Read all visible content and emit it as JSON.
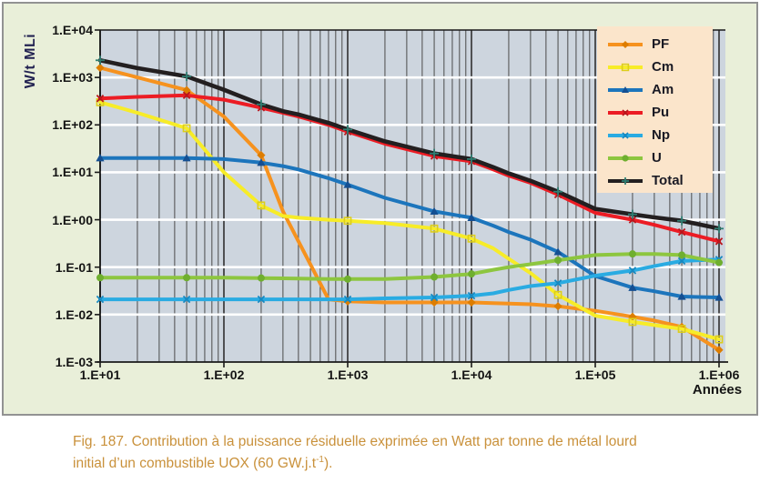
{
  "figure": {
    "y_axis_title": "W/t MLi",
    "x_axis_title": "Années",
    "caption": {
      "line1": "Fig. 187. Contribution à la puissance résiduelle exprimée en Watt par tonne de métal lourd",
      "line2_pre": "initial d’un combustible UOX (60 GW.j.t",
      "line2_sup": "-1",
      "line2_post": ")."
    },
    "colors": {
      "figure_background": "#e9efd9",
      "plot_background": "#cdd5de",
      "legend_background": "#fbe5cb",
      "caption_text": "#c9913b",
      "axis_text": "#141414",
      "grid_vertical": "#4a4a4a",
      "grid_horizontal": "#ffffff"
    }
  },
  "chart_data": {
    "type": "line",
    "title": "",
    "xlabel": "Années",
    "ylabel": "W/t MLi",
    "x_scale": "log",
    "y_scale": "log",
    "xlim": [
      10,
      1000000
    ],
    "ylim": [
      0.001,
      10000
    ],
    "x_tick_labels": [
      "1.E+01",
      "1.E+02",
      "1.E+03",
      "1.E+04",
      "1.E+05",
      "1.E+06"
    ],
    "x_tick_values": [
      10,
      100,
      1000,
      10000,
      100000,
      1000000
    ],
    "y_tick_labels": [
      "1.E+04",
      "1.E+03",
      "1.E+02",
      "1.E+01",
      "1.E+00",
      "1.E-01",
      "1.E-02",
      "1.E-03"
    ],
    "y_tick_values": [
      10000,
      1000,
      100,
      10,
      1,
      0.1,
      0.01,
      0.001
    ],
    "legend_position": "top-right",
    "grid": {
      "vertical_minor_log_lines": true,
      "horizontal_decade_lines": "white"
    },
    "x": [
      10,
      20,
      50,
      100,
      200,
      300,
      400,
      700,
      1000,
      2000,
      5000,
      10000,
      15000,
      20000,
      30000,
      50000,
      100000,
      200000,
      300000,
      500000,
      1000000
    ],
    "marker_x": [
      10,
      50,
      200,
      1000,
      5000,
      10000,
      50000,
      200000,
      500000,
      1000000
    ],
    "series": [
      {
        "name": "PF",
        "color": "#f6921e",
        "marker": "diamond",
        "marker_color": "#dd7d00",
        "values": [
          1600,
          1000,
          540,
          150,
          23,
          1.5,
          0.35,
          0.021,
          0.019,
          0.018,
          0.018,
          0.018,
          0.0175,
          0.017,
          0.0165,
          0.015,
          0.012,
          0.009,
          0.0075,
          0.0055,
          0.0018
        ]
      },
      {
        "name": "Cm",
        "color": "#f7ec28",
        "marker": "square",
        "marker_color": "#ddce1a",
        "values": [
          300,
          180,
          85,
          10,
          2.0,
          1.2,
          1.1,
          1.0,
          0.95,
          0.85,
          0.65,
          0.4,
          0.25,
          0.15,
          0.075,
          0.026,
          0.0095,
          0.007,
          0.006,
          0.005,
          0.003
        ]
      },
      {
        "name": "Am",
        "color": "#1c75bc",
        "marker": "triangle",
        "marker_color": "#144f92",
        "values": [
          20,
          20,
          20,
          19,
          16,
          13.5,
          11.5,
          7.5,
          5.5,
          2.9,
          1.5,
          1.1,
          0.75,
          0.55,
          0.38,
          0.21,
          0.065,
          0.037,
          0.031,
          0.024,
          0.023
        ]
      },
      {
        "name": "Pu",
        "color": "#ec1c24",
        "marker": "x",
        "marker_color": "#b8161c",
        "values": [
          360,
          390,
          420,
          340,
          230,
          180,
          150,
          100,
          72,
          40,
          22,
          17,
          11.5,
          8.5,
          6.0,
          3.4,
          1.4,
          1.0,
          0.78,
          0.55,
          0.35
        ]
      },
      {
        "name": "Np",
        "color": "#29abe2",
        "marker": "x",
        "marker_color": "#1788c0",
        "values": [
          0.021,
          0.021,
          0.021,
          0.021,
          0.021,
          0.021,
          0.021,
          0.021,
          0.021,
          0.022,
          0.023,
          0.025,
          0.028,
          0.033,
          0.04,
          0.046,
          0.066,
          0.085,
          0.105,
          0.135,
          0.145
        ]
      },
      {
        "name": "U",
        "color": "#8dc63f",
        "marker": "circle",
        "marker_color": "#6faf2f",
        "values": [
          0.06,
          0.06,
          0.06,
          0.06,
          0.059,
          0.058,
          0.0575,
          0.056,
          0.056,
          0.056,
          0.062,
          0.072,
          0.088,
          0.1,
          0.115,
          0.14,
          0.18,
          0.19,
          0.19,
          0.18,
          0.125
        ]
      },
      {
        "name": "Total",
        "color": "#231f20",
        "marker": "plus",
        "marker_color": "#2f7e72",
        "values": [
          2300,
          1570,
          1050,
          550,
          270,
          195,
          165,
          110,
          80,
          45,
          25,
          19,
          12.8,
          9.5,
          6.6,
          3.9,
          1.7,
          1.3,
          1.12,
          0.95,
          0.65
        ]
      }
    ]
  }
}
